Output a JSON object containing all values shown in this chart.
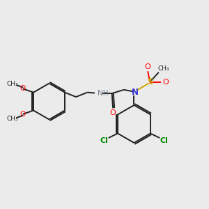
{
  "bg_color": "#ebebeb",
  "bond_color": "#222222",
  "oxygen_color": "#ff0000",
  "nitrogen_color": "#3333cc",
  "nitrogen_h_color": "#708090",
  "sulfur_color": "#ccaa00",
  "chlorine_color": "#008800",
  "figsize": [
    3.0,
    3.0
  ],
  "dpi": 100,
  "xlim": [
    0,
    10
  ],
  "ylim": [
    0,
    10
  ]
}
